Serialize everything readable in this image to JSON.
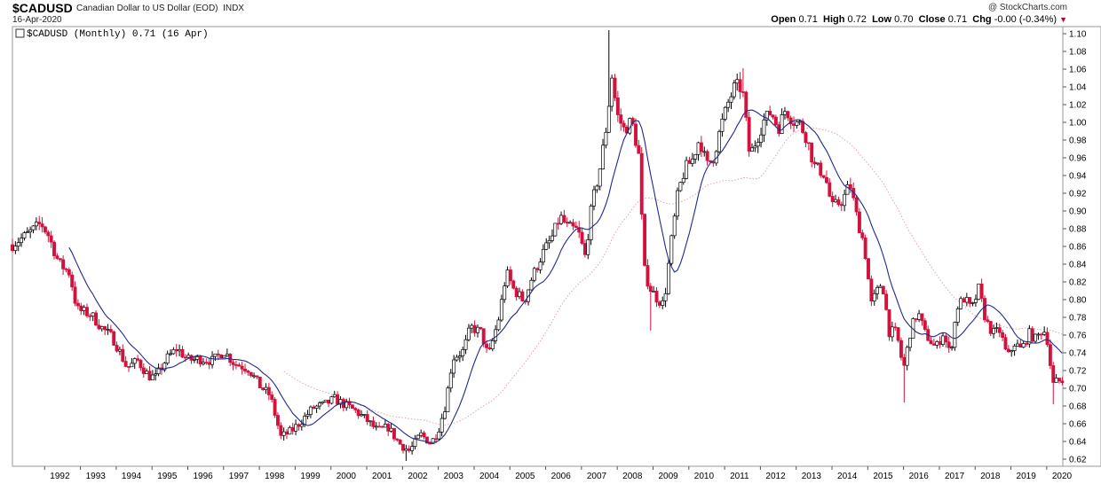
{
  "header": {
    "symbol": "$CADUSD",
    "description": "Canadian Dollar to US Dollar (EOD)",
    "exchange": "INDX",
    "date": "16-Apr-2020",
    "brand": "@ StockCharts.com",
    "open_label": "Open",
    "open": "0.71",
    "high_label": "High",
    "high": "0.72",
    "low_label": "Low",
    "low": "0.70",
    "close_label": "Close",
    "close": "0.71",
    "chg_label": "Chg",
    "chg": "-0.00 (-0.34%)",
    "chg_icon": "down-triangle-icon"
  },
  "legend": {
    "text": "$CADUSD (Monthly) 0.71 (16 Apr)"
  },
  "colors": {
    "up": "#000000",
    "down": "#d2123c",
    "ma_short": "#1f2a8c",
    "ma_long": "#e8a0a8"
  },
  "chart_data": {
    "type": "candlestick",
    "title": "$CADUSD (Monthly)",
    "x_tick_labels": [
      "1992",
      "1993",
      "1994",
      "1995",
      "1996",
      "1997",
      "1998",
      "1999",
      "2000",
      "2001",
      "2002",
      "2003",
      "2004",
      "2005",
      "2006",
      "2007",
      "2008",
      "2009",
      "2010",
      "2011",
      "2012",
      "2013",
      "2014",
      "2015",
      "2016",
      "2017",
      "2018",
      "2019",
      "2020"
    ],
    "y_tick_labels": [
      "0.62",
      "0.64",
      "0.66",
      "0.68",
      "0.70",
      "0.72",
      "0.74",
      "0.76",
      "0.78",
      "0.80",
      "0.82",
      "0.84",
      "0.86",
      "0.88",
      "0.90",
      "0.92",
      "0.94",
      "0.96",
      "0.98",
      "1.00",
      "1.02",
      "1.04",
      "1.06",
      "1.08",
      "1.10"
    ],
    "xlim": [
      1991.1,
      2020.45
    ],
    "ylim": [
      0.612,
      1.108
    ],
    "y_axis_side": "right",
    "grid": false,
    "close_anchors": [
      [
        1991.1,
        0.862
      ],
      [
        1991.5,
        0.873
      ],
      [
        1991.9,
        0.886
      ],
      [
        1992.1,
        0.873
      ],
      [
        1992.4,
        0.841
      ],
      [
        1992.7,
        0.83
      ],
      [
        1992.9,
        0.789
      ],
      [
        1993.3,
        0.783
      ],
      [
        1993.6,
        0.768
      ],
      [
        1993.9,
        0.757
      ],
      [
        1994.1,
        0.741
      ],
      [
        1994.3,
        0.723
      ],
      [
        1994.6,
        0.731
      ],
      [
        1994.9,
        0.714
      ],
      [
        1995.1,
        0.712
      ],
      [
        1995.4,
        0.733
      ],
      [
        1995.7,
        0.745
      ],
      [
        1996.0,
        0.732
      ],
      [
        1996.4,
        0.733
      ],
      [
        1996.7,
        0.731
      ],
      [
        1997.0,
        0.742
      ],
      [
        1997.3,
        0.728
      ],
      [
        1997.7,
        0.722
      ],
      [
        1998.0,
        0.703
      ],
      [
        1998.3,
        0.692
      ],
      [
        1998.6,
        0.645
      ],
      [
        1998.9,
        0.652
      ],
      [
        1999.2,
        0.664
      ],
      [
        1999.5,
        0.678
      ],
      [
        1999.8,
        0.681
      ],
      [
        2000.1,
        0.688
      ],
      [
        2000.4,
        0.681
      ],
      [
        2000.7,
        0.674
      ],
      [
        2001.0,
        0.664
      ],
      [
        2001.3,
        0.652
      ],
      [
        2001.6,
        0.656
      ],
      [
        2001.9,
        0.638
      ],
      [
        2002.2,
        0.629
      ],
      [
        2002.5,
        0.648
      ],
      [
        2002.8,
        0.638
      ],
      [
        2003.0,
        0.653
      ],
      [
        2003.2,
        0.681
      ],
      [
        2003.4,
        0.734
      ],
      [
        2003.7,
        0.742
      ],
      [
        2003.9,
        0.769
      ],
      [
        2004.2,
        0.763
      ],
      [
        2004.4,
        0.735
      ],
      [
        2004.7,
        0.781
      ],
      [
        2004.9,
        0.831
      ],
      [
        2005.1,
        0.812
      ],
      [
        2005.4,
        0.798
      ],
      [
        2005.6,
        0.823
      ],
      [
        2005.9,
        0.851
      ],
      [
        2006.2,
        0.872
      ],
      [
        2006.4,
        0.894
      ],
      [
        2006.6,
        0.882
      ],
      [
        2006.9,
        0.878
      ],
      [
        2007.1,
        0.849
      ],
      [
        2007.3,
        0.909
      ],
      [
        2007.5,
        0.944
      ],
      [
        2007.7,
        0.996
      ],
      [
        2007.85,
        1.052
      ],
      [
        2008.0,
        1.008
      ],
      [
        2008.2,
        0.991
      ],
      [
        2008.4,
        1.002
      ],
      [
        2008.6,
        0.963
      ],
      [
        2008.75,
        0.835
      ],
      [
        2008.9,
        0.814
      ],
      [
        2009.1,
        0.802
      ],
      [
        2009.3,
        0.794
      ],
      [
        2009.5,
        0.862
      ],
      [
        2009.7,
        0.921
      ],
      [
        2009.9,
        0.948
      ],
      [
        2010.1,
        0.958
      ],
      [
        2010.3,
        0.982
      ],
      [
        2010.5,
        0.951
      ],
      [
        2010.7,
        0.961
      ],
      [
        2010.9,
        0.996
      ],
      [
        2011.1,
        1.022
      ],
      [
        2011.3,
        1.042
      ],
      [
        2011.5,
        1.037
      ],
      [
        2011.7,
        0.962
      ],
      [
        2011.9,
        0.981
      ],
      [
        2012.1,
        1.002
      ],
      [
        2012.3,
        1.012
      ],
      [
        2012.5,
        0.993
      ],
      [
        2012.7,
        1.015
      ],
      [
        2012.9,
        1.002
      ],
      [
        2013.1,
        0.998
      ],
      [
        2013.3,
        0.982
      ],
      [
        2013.5,
        0.951
      ],
      [
        2013.8,
        0.941
      ],
      [
        2014.0,
        0.904
      ],
      [
        2014.3,
        0.912
      ],
      [
        2014.5,
        0.931
      ],
      [
        2014.7,
        0.892
      ],
      [
        2014.9,
        0.862
      ],
      [
        2015.1,
        0.795
      ],
      [
        2015.4,
        0.821
      ],
      [
        2015.6,
        0.764
      ],
      [
        2015.8,
        0.763
      ],
      [
        2016.0,
        0.721
      ],
      [
        2016.2,
        0.766
      ],
      [
        2016.4,
        0.786
      ],
      [
        2016.6,
        0.762
      ],
      [
        2016.9,
        0.745
      ],
      [
        2017.1,
        0.762
      ],
      [
        2017.3,
        0.738
      ],
      [
        2017.5,
        0.792
      ],
      [
        2017.7,
        0.802
      ],
      [
        2017.9,
        0.788
      ],
      [
        2018.1,
        0.812
      ],
      [
        2018.3,
        0.776
      ],
      [
        2018.5,
        0.762
      ],
      [
        2018.7,
        0.765
      ],
      [
        2018.9,
        0.734
      ],
      [
        2019.1,
        0.751
      ],
      [
        2019.3,
        0.743
      ],
      [
        2019.5,
        0.762
      ],
      [
        2019.7,
        0.755
      ],
      [
        2019.9,
        0.768
      ],
      [
        2020.05,
        0.751
      ],
      [
        2020.15,
        0.703
      ],
      [
        2020.29,
        0.708
      ]
    ],
    "notable_highs_lows": [
      [
        1991.9,
        0.893,
        "high"
      ],
      [
        2002.1,
        0.618,
        "low"
      ],
      [
        2007.75,
        1.104,
        "high"
      ],
      [
        2008.95,
        0.765,
        "low"
      ],
      [
        2011.5,
        1.061,
        "high"
      ],
      [
        2016.05,
        0.684,
        "low"
      ],
      [
        2020.2,
        0.682,
        "low"
      ]
    ],
    "series": [
      {
        "kind": "ohlc_bars",
        "style": "hollow-up / filled-down candles"
      },
      {
        "kind": "moving_average",
        "style": "short, navy line",
        "start_x": 1992.6
      },
      {
        "kind": "moving_average",
        "style": "long, dotted pink",
        "start_x": 1998.6
      }
    ]
  }
}
